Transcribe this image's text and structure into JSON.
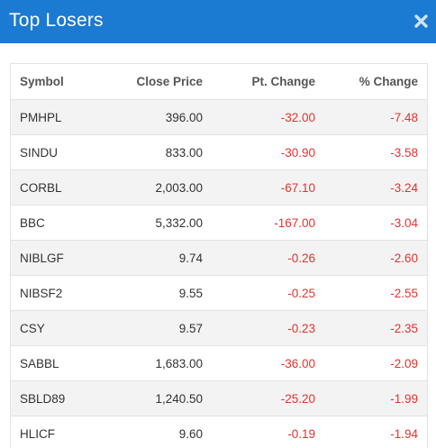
{
  "modal": {
    "title": "Top Losers",
    "close_icon": "close-icon"
  },
  "colors": {
    "header_bg": "#1b7ad2",
    "negative": "#e3332d"
  },
  "table": {
    "headers": {
      "symbol": "Symbol",
      "close_price": "Close Price",
      "pt_change": "Pt. Change",
      "pct_change": "% Change"
    },
    "rows": [
      {
        "symbol": "PMHPL",
        "close_price": "396.00",
        "pt_change": "-32.00",
        "pct_change": "-7.48"
      },
      {
        "symbol": "SINDU",
        "close_price": "833.00",
        "pt_change": "-30.90",
        "pct_change": "-3.58"
      },
      {
        "symbol": "CORBL",
        "close_price": "2,003.00",
        "pt_change": "-67.10",
        "pct_change": "-3.24"
      },
      {
        "symbol": "BBC",
        "close_price": "5,332.00",
        "pt_change": "-167.00",
        "pct_change": "-3.04"
      },
      {
        "symbol": "NIBLGF",
        "close_price": "9.74",
        "pt_change": "-0.26",
        "pct_change": "-2.60"
      },
      {
        "symbol": "NIBSF2",
        "close_price": "9.55",
        "pt_change": "-0.25",
        "pct_change": "-2.55"
      },
      {
        "symbol": "CSY",
        "close_price": "9.57",
        "pt_change": "-0.23",
        "pct_change": "-2.35"
      },
      {
        "symbol": "SABBL",
        "close_price": "1,683.00",
        "pt_change": "-36.00",
        "pct_change": "-2.09"
      },
      {
        "symbol": "SBLD89",
        "close_price": "1,240.50",
        "pt_change": "-25.20",
        "pct_change": "-1.99"
      },
      {
        "symbol": "HLICF",
        "close_price": "9.60",
        "pt_change": "-0.19",
        "pct_change": "-1.94"
      }
    ]
  }
}
